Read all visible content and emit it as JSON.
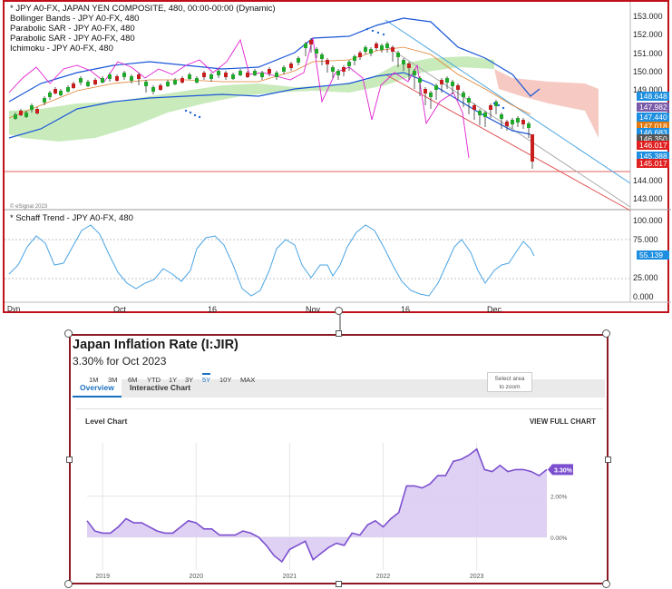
{
  "top_chart": {
    "legend": [
      "* JPY A0-FX, JAPAN YEN COMPOSITE, 480, 00:00-00:00 (Dynamic)",
      "Bollinger Bands - JPY A0-FX, 480",
      "Parabolic SAR - JPY A0-FX, 480",
      "Parabolic SAR - JPY A0-FX, 480",
      "Ichimoku - JPY A0-FX, 480"
    ],
    "price_axis": [
      "153.000",
      "152.000",
      "151.000",
      "150.000",
      "149.000",
      "144.000",
      "143.000"
    ],
    "price_tags": [
      {
        "text": "148.648",
        "color": "#1e8fe0"
      },
      {
        "text": "147.982",
        "color": "#7a5aa8"
      },
      {
        "text": "147.440",
        "color": "#1e8fe0"
      },
      {
        "text": "147.018",
        "color": "#e07a10"
      },
      {
        "text": "146.683",
        "color": "#1e8fe0"
      },
      {
        "text": "146.350",
        "color": "#555555"
      },
      {
        "text": "146.017",
        "color": "#e02020"
      },
      {
        "text": "145.388",
        "color": "#1e8fe0"
      },
      {
        "text": "145.017",
        "color": "#e02020"
      }
    ],
    "watermark": "© eSignal 2023",
    "oscillator_title": "* Schaff Trend - JPY A0-FX, 480",
    "oscillator_axis": [
      "100.000",
      "75.000",
      "25.000",
      "0.000"
    ],
    "oscillator_tag": {
      "text": "55.139",
      "color": "#1e8fe0"
    },
    "x_labels": [
      "Oct",
      "16",
      "Nov",
      "16",
      "Dec"
    ],
    "corner_label": "Dyn"
  },
  "panel": {
    "title": "Japan Inflation Rate (I:JIR)",
    "subtitle": "3.30% for Oct 2023",
    "tabs": [
      "Overview",
      "Interactive Chart"
    ],
    "level_chart_label": "Level Chart",
    "view_full": "VIEW FULL CHART",
    "ranges": [
      "1M",
      "3M",
      "6M",
      "YTD",
      "1Y",
      "3Y",
      "5Y",
      "10Y",
      "MAX"
    ],
    "active_range": "5Y",
    "zoom_hint_line1": "Select area",
    "zoom_hint_line2": "to zoom"
  },
  "chart_data": {
    "type": "area",
    "title": "Japan Inflation Rate (I:JIR)",
    "x_labels": [
      "2019",
      "2020",
      "2021",
      "2022",
      "2023"
    ],
    "y_ticks": [
      "2.00%",
      "0.00%"
    ],
    "last_value_label": "3.30%",
    "color": "#7b4fcf",
    "fill": "#d9c9f2",
    "series": [
      {
        "date": "2018-11",
        "value": 0.8
      },
      {
        "date": "2018-12",
        "value": 0.3
      },
      {
        "date": "2019-01",
        "value": 0.2
      },
      {
        "date": "2019-02",
        "value": 0.2
      },
      {
        "date": "2019-03",
        "value": 0.5
      },
      {
        "date": "2019-04",
        "value": 0.9
      },
      {
        "date": "2019-05",
        "value": 0.7
      },
      {
        "date": "2019-06",
        "value": 0.7
      },
      {
        "date": "2019-07",
        "value": 0.5
      },
      {
        "date": "2019-08",
        "value": 0.3
      },
      {
        "date": "2019-09",
        "value": 0.2
      },
      {
        "date": "2019-10",
        "value": 0.2
      },
      {
        "date": "2019-11",
        "value": 0.5
      },
      {
        "date": "2019-12",
        "value": 0.8
      },
      {
        "date": "2020-01",
        "value": 0.7
      },
      {
        "date": "2020-02",
        "value": 0.4
      },
      {
        "date": "2020-03",
        "value": 0.4
      },
      {
        "date": "2020-04",
        "value": 0.1
      },
      {
        "date": "2020-05",
        "value": 0.1
      },
      {
        "date": "2020-06",
        "value": 0.1
      },
      {
        "date": "2020-07",
        "value": 0.3
      },
      {
        "date": "2020-08",
        "value": 0.2
      },
      {
        "date": "2020-09",
        "value": 0.0
      },
      {
        "date": "2020-10",
        "value": -0.4
      },
      {
        "date": "2020-11",
        "value": -0.9
      },
      {
        "date": "2020-12",
        "value": -1.2
      },
      {
        "date": "2021-01",
        "value": -0.6
      },
      {
        "date": "2021-02",
        "value": -0.4
      },
      {
        "date": "2021-03",
        "value": -0.2
      },
      {
        "date": "2021-04",
        "value": -1.1
      },
      {
        "date": "2021-05",
        "value": -0.8
      },
      {
        "date": "2021-06",
        "value": -0.5
      },
      {
        "date": "2021-07",
        "value": -0.3
      },
      {
        "date": "2021-08",
        "value": -0.4
      },
      {
        "date": "2021-09",
        "value": 0.2
      },
      {
        "date": "2021-10",
        "value": 0.1
      },
      {
        "date": "2021-11",
        "value": 0.6
      },
      {
        "date": "2021-12",
        "value": 0.8
      },
      {
        "date": "2022-01",
        "value": 0.5
      },
      {
        "date": "2022-02",
        "value": 0.9
      },
      {
        "date": "2022-03",
        "value": 1.2
      },
      {
        "date": "2022-04",
        "value": 2.5
      },
      {
        "date": "2022-05",
        "value": 2.5
      },
      {
        "date": "2022-06",
        "value": 2.4
      },
      {
        "date": "2022-07",
        "value": 2.6
      },
      {
        "date": "2022-08",
        "value": 3.0
      },
      {
        "date": "2022-09",
        "value": 3.0
      },
      {
        "date": "2022-10",
        "value": 3.7
      },
      {
        "date": "2022-11",
        "value": 3.8
      },
      {
        "date": "2022-12",
        "value": 4.0
      },
      {
        "date": "2023-01",
        "value": 4.3
      },
      {
        "date": "2023-02",
        "value": 3.3
      },
      {
        "date": "2023-03",
        "value": 3.2
      },
      {
        "date": "2023-04",
        "value": 3.5
      },
      {
        "date": "2023-05",
        "value": 3.2
      },
      {
        "date": "2023-06",
        "value": 3.3
      },
      {
        "date": "2023-07",
        "value": 3.3
      },
      {
        "date": "2023-08",
        "value": 3.2
      },
      {
        "date": "2023-09",
        "value": 3.0
      },
      {
        "date": "2023-10",
        "value": 3.3
      }
    ]
  }
}
